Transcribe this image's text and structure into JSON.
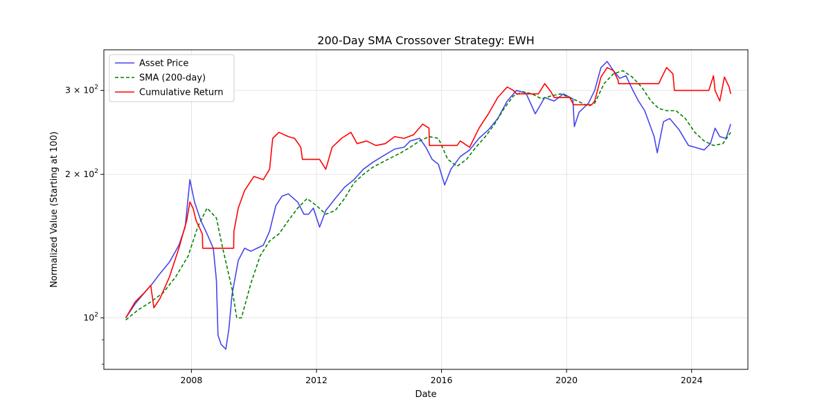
{
  "chart_data": {
    "type": "line",
    "title": "200-Day SMA Crossover Strategy: EWH",
    "xlabel": "Date",
    "ylabel": "Normalized Value (Starting at 100)",
    "yscale": "log",
    "xlim": [
      2005.2,
      2025.8
    ],
    "ylim": [
      78,
      365
    ],
    "x_ticks": [
      {
        "value": 2008,
        "label": "2008"
      },
      {
        "value": 2012,
        "label": "2012"
      },
      {
        "value": 2016,
        "label": "2016"
      },
      {
        "value": 2020,
        "label": "2020"
      },
      {
        "value": 2024,
        "label": "2024"
      }
    ],
    "y_ticks": [
      {
        "value": 100,
        "label": "10",
        "exp": "2"
      },
      {
        "value": 200,
        "label": "2 × 10",
        "exp": "2"
      },
      {
        "value": 300,
        "label": "3 × 10",
        "exp": "2"
      }
    ],
    "y_minor_ticks": [
      80,
      90
    ],
    "grid": true,
    "legend_position": "upper-left",
    "series": [
      {
        "name": "Asset Price",
        "color": "#4444ee",
        "style": "solid",
        "x": [
          2005.9,
          2006.2,
          2006.5,
          2006.75,
          2007.0,
          2007.3,
          2007.6,
          2007.8,
          2007.95,
          2008.1,
          2008.3,
          2008.5,
          2008.7,
          2008.8,
          2008.85,
          2008.95,
          2009.1,
          2009.2,
          2009.3,
          2009.5,
          2009.7,
          2009.9,
          2010.1,
          2010.3,
          2010.5,
          2010.7,
          2010.9,
          2011.1,
          2011.4,
          2011.6,
          2011.75,
          2011.9,
          2012.1,
          2012.3,
          2012.6,
          2012.9,
          2013.2,
          2013.5,
          2013.8,
          2014.1,
          2014.5,
          2014.8,
          2015.0,
          2015.3,
          2015.5,
          2015.7,
          2015.9,
          2016.1,
          2016.3,
          2016.6,
          2016.9,
          2017.2,
          2017.5,
          2017.8,
          2018.1,
          2018.4,
          2018.7,
          2019.0,
          2019.3,
          2019.6,
          2019.9,
          2020.2,
          2020.25,
          2020.4,
          2020.7,
          2020.9,
          2021.1,
          2021.3,
          2021.5,
          2021.7,
          2021.9,
          2022.1,
          2022.3,
          2022.5,
          2022.8,
          2022.9,
          2023.1,
          2023.3,
          2023.6,
          2023.9,
          2024.1,
          2024.4,
          2024.6,
          2024.75,
          2024.9,
          2025.1,
          2025.25
        ],
        "y": [
          100,
          107,
          113,
          118,
          124,
          131,
          142,
          155,
          195,
          175,
          160,
          150,
          140,
          120,
          92,
          88,
          86,
          95,
          112,
          132,
          140,
          138,
          140,
          142,
          152,
          172,
          180,
          182,
          175,
          165,
          165,
          170,
          155,
          168,
          178,
          188,
          195,
          205,
          212,
          218,
          226,
          228,
          235,
          238,
          228,
          215,
          210,
          190,
          205,
          218,
          225,
          238,
          248,
          262,
          285,
          300,
          296,
          268,
          290,
          285,
          295,
          288,
          252,
          270,
          282,
          300,
          335,
          345,
          330,
          318,
          322,
          302,
          285,
          272,
          240,
          222,
          258,
          262,
          248,
          230,
          228,
          225,
          232,
          250,
          240,
          238,
          255
        ]
      },
      {
        "name": "SMA (200-day)",
        "color": "#008000",
        "style": "dashed",
        "x": [
          2005.9,
          2006.3,
          2006.7,
          2007.1,
          2007.5,
          2007.9,
          2008.2,
          2008.5,
          2008.8,
          2009.0,
          2009.3,
          2009.45,
          2009.6,
          2009.9,
          2010.2,
          2010.5,
          2010.8,
          2011.1,
          2011.4,
          2011.7,
          2012.0,
          2012.3,
          2012.6,
          2012.9,
          2013.2,
          2013.5,
          2013.8,
          2014.1,
          2014.4,
          2014.7,
          2015.0,
          2015.3,
          2015.6,
          2015.9,
          2016.2,
          2016.5,
          2016.8,
          2017.1,
          2017.4,
          2017.7,
          2018.0,
          2018.3,
          2018.6,
          2018.9,
          2019.2,
          2019.5,
          2019.8,
          2020.1,
          2020.4,
          2020.7,
          2020.9,
          2021.2,
          2021.5,
          2021.8,
          2022.1,
          2022.4,
          2022.7,
          2022.95,
          2023.2,
          2023.5,
          2023.8,
          2024.1,
          2024.4,
          2024.7,
          2025.0,
          2025.25
        ],
        "y": [
          99,
          104,
          108,
          113,
          122,
          135,
          155,
          170,
          162,
          140,
          115,
          100,
          100,
          118,
          135,
          145,
          150,
          160,
          170,
          178,
          172,
          165,
          168,
          178,
          192,
          200,
          207,
          212,
          217,
          222,
          228,
          235,
          240,
          238,
          215,
          208,
          215,
          228,
          240,
          255,
          275,
          292,
          298,
          295,
          288,
          292,
          295,
          290,
          284,
          278,
          282,
          310,
          325,
          330,
          320,
          305,
          285,
          275,
          272,
          272,
          262,
          245,
          235,
          230,
          232,
          245
        ]
      },
      {
        "name": "Cumulative Return",
        "color": "#ff0000",
        "style": "solid",
        "x": [
          2005.9,
          2006.2,
          2006.5,
          2006.7,
          2006.8,
          2007.0,
          2007.3,
          2007.6,
          2007.85,
          2007.95,
          2008.05,
          2008.15,
          2008.35,
          2008.36,
          2009.35,
          2009.36,
          2009.5,
          2009.7,
          2010.0,
          2010.3,
          2010.5,
          2010.6,
          2010.8,
          2011.1,
          2011.3,
          2011.5,
          2011.55,
          2012.1,
          2012.3,
          2012.5,
          2012.8,
          2013.1,
          2013.3,
          2013.6,
          2013.9,
          2014.2,
          2014.5,
          2014.8,
          2015.1,
          2015.4,
          2015.6,
          2015.61,
          2016.5,
          2016.6,
          2016.9,
          2017.2,
          2017.5,
          2017.8,
          2018.1,
          2018.3,
          2018.4,
          2018.41,
          2019.1,
          2019.3,
          2019.5,
          2019.6,
          2019.61,
          2020.1,
          2020.2,
          2020.21,
          2020.8,
          2020.9,
          2021.1,
          2021.3,
          2021.5,
          2021.65,
          2021.66,
          2022.95,
          2023.05,
          2023.2,
          2023.4,
          2023.45,
          2023.46,
          2024.4,
          2024.55,
          2024.7,
          2024.75,
          2024.9,
          2025.05,
          2025.2,
          2025.25
        ],
        "y": [
          100,
          108,
          113,
          117,
          105,
          110,
          122,
          140,
          160,
          175,
          170,
          160,
          150,
          140,
          140,
          152,
          170,
          185,
          198,
          195,
          205,
          238,
          245,
          240,
          238,
          228,
          215,
          215,
          205,
          228,
          238,
          245,
          232,
          235,
          230,
          232,
          240,
          238,
          242,
          255,
          250,
          230,
          230,
          235,
          228,
          250,
          268,
          290,
          305,
          300,
          295,
          295,
          295,
          310,
          298,
          290,
          290,
          290,
          282,
          280,
          280,
          285,
          320,
          335,
          330,
          315,
          310,
          310,
          320,
          335,
          325,
          300,
          300,
          300,
          300,
          322,
          300,
          285,
          320,
          305,
          295
        ]
      }
    ]
  }
}
